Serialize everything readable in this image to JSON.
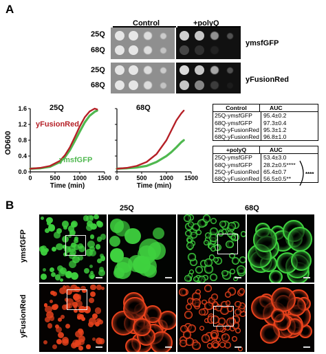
{
  "panel_a": {
    "letter": "A",
    "spot_assay": {
      "col_headers": [
        "Control",
        "+polyQ"
      ],
      "row_labels": [
        "25Q",
        "68Q",
        "25Q",
        "68Q"
      ],
      "group_labels": [
        "ymsfGFP",
        "yFusionRed"
      ],
      "colors": {
        "plate": "#8f8f8f",
        "colony": "#e6e6e6"
      }
    },
    "growth_curves": {
      "ylabel": "OD600",
      "xlabel": "Time (min)",
      "series_labels": {
        "red": "yFusionRed",
        "green": "ymsfGFP"
      },
      "colors": {
        "red": "#b52027",
        "green": "#4fb84f"
      }
    },
    "tables": [
      {
        "header": [
          "Control",
          "AUC"
        ],
        "rows": [
          [
            "25Q-ymsfGFP",
            "95.4±0.2"
          ],
          [
            "68Q-ymsfGFP",
            "97.3±0.4"
          ],
          [
            "25Q-yFusionRed",
            "95.3±1.2"
          ],
          [
            "68Q-yFusionRed",
            "96.8±1.0"
          ]
        ]
      },
      {
        "header": [
          "+polyQ",
          "AUC"
        ],
        "rows": [
          [
            "25Q-ymsfGFP",
            "53.4±3.0"
          ],
          [
            "68Q-ymsfGFP",
            "28.2±0.5****"
          ],
          [
            "25Q-yFusionRed",
            "65.4±0.7"
          ],
          [
            "68Q-yFusionRed",
            "56.5±0.5**"
          ]
        ],
        "bracket_label": "****"
      }
    ]
  },
  "panel_b": {
    "letter": "B",
    "col_headers": [
      "25Q",
      "68Q"
    ],
    "row_labels": [
      "ymsfGFP",
      "yFusionRed"
    ],
    "colors": {
      "green": "#3fd23f",
      "red": "#e8421c",
      "background": "#020202"
    }
  },
  "chart_data": [
    {
      "type": "line",
      "title": "25Q",
      "xlabel": "Time (min)",
      "ylabel": "OD600",
      "xlim": [
        0,
        1500
      ],
      "ylim": [
        0,
        1.6
      ],
      "xticks": [
        0,
        500,
        1000,
        1500
      ],
      "yticks": [
        0.0,
        0.4,
        0.8,
        1.2,
        1.6
      ],
      "x": [
        0,
        200,
        400,
        600,
        700,
        800,
        900,
        1000,
        1100,
        1200,
        1300,
        1350
      ],
      "series": [
        {
          "name": "yFusionRed",
          "values": [
            0.08,
            0.1,
            0.15,
            0.28,
            0.42,
            0.62,
            0.88,
            1.15,
            1.38,
            1.53,
            1.6,
            1.58
          ]
        },
        {
          "name": "ymsfGFP",
          "values": [
            0.08,
            0.09,
            0.13,
            0.25,
            0.37,
            0.55,
            0.78,
            1.02,
            1.25,
            1.42,
            1.52,
            1.55
          ]
        }
      ]
    },
    {
      "type": "line",
      "title": "68Q",
      "xlabel": "Time (min)",
      "xlim": [
        0,
        1500
      ],
      "ylim": [
        0,
        1.6
      ],
      "xticks": [
        0,
        500,
        1000,
        1500
      ],
      "x": [
        0,
        200,
        400,
        600,
        800,
        1000,
        1100,
        1200,
        1300,
        1350
      ],
      "series": [
        {
          "name": "yFusionRed",
          "values": [
            0.08,
            0.1,
            0.15,
            0.25,
            0.45,
            0.8,
            1.05,
            1.3,
            1.48,
            1.55
          ]
        },
        {
          "name": "ymsfGFP",
          "values": [
            0.08,
            0.09,
            0.11,
            0.15,
            0.25,
            0.4,
            0.5,
            0.62,
            0.75,
            0.8
          ]
        }
      ]
    }
  ]
}
